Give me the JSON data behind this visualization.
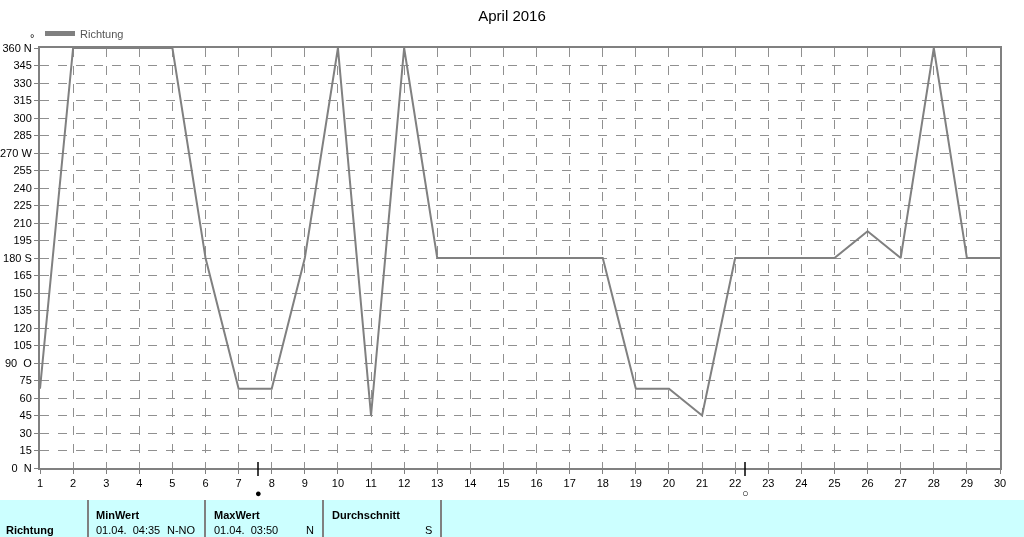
{
  "chart_data": {
    "type": "line",
    "title": "April 2016",
    "ylabel": "°",
    "x": [
      1,
      2,
      3,
      4,
      5,
      6,
      7,
      8,
      9,
      10,
      11,
      12,
      13,
      14,
      15,
      16,
      17,
      18,
      19,
      20,
      21,
      22,
      23,
      24,
      25,
      26,
      27,
      28,
      29,
      30
    ],
    "series": [
      {
        "name": "Richtung",
        "color": "#808080",
        "values": [
          68,
          360,
          360,
          360,
          360,
          180,
          68,
          68,
          180,
          360,
          45,
          360,
          180,
          180,
          180,
          180,
          180,
          180,
          68,
          68,
          45,
          180,
          180,
          180,
          180,
          203,
          180,
          360,
          180,
          180
        ]
      }
    ],
    "xlim": [
      1,
      30
    ],
    "xticks": [
      1,
      2,
      3,
      4,
      5,
      6,
      7,
      8,
      9,
      10,
      11,
      12,
      13,
      14,
      15,
      16,
      17,
      18,
      19,
      20,
      21,
      22,
      23,
      24,
      25,
      26,
      27,
      28,
      29,
      30
    ],
    "ylim": [
      0,
      360
    ],
    "yticks": [
      {
        "value": 0,
        "label": "0  N"
      },
      15,
      30,
      45,
      60,
      75,
      {
        "value": 90,
        "label": "90  O"
      },
      105,
      120,
      135,
      150,
      165,
      {
        "value": 180,
        "label": "180 S"
      },
      195,
      210,
      225,
      240,
      255,
      {
        "value": 270,
        "label": "270 W"
      },
      285,
      300,
      315,
      330,
      345,
      {
        "value": 360,
        "label": "360 N"
      }
    ],
    "grid": true,
    "legend": "top left",
    "marker": "none",
    "line_style": "solid",
    "annotations": [
      "●",
      "○",
      "Richtung",
      "MinWert",
      "01.04.  04:35",
      "N-NO",
      "MaxWert",
      "01.04.  03:50",
      "N",
      "Durchschnitt",
      "S"
    ]
  }
}
